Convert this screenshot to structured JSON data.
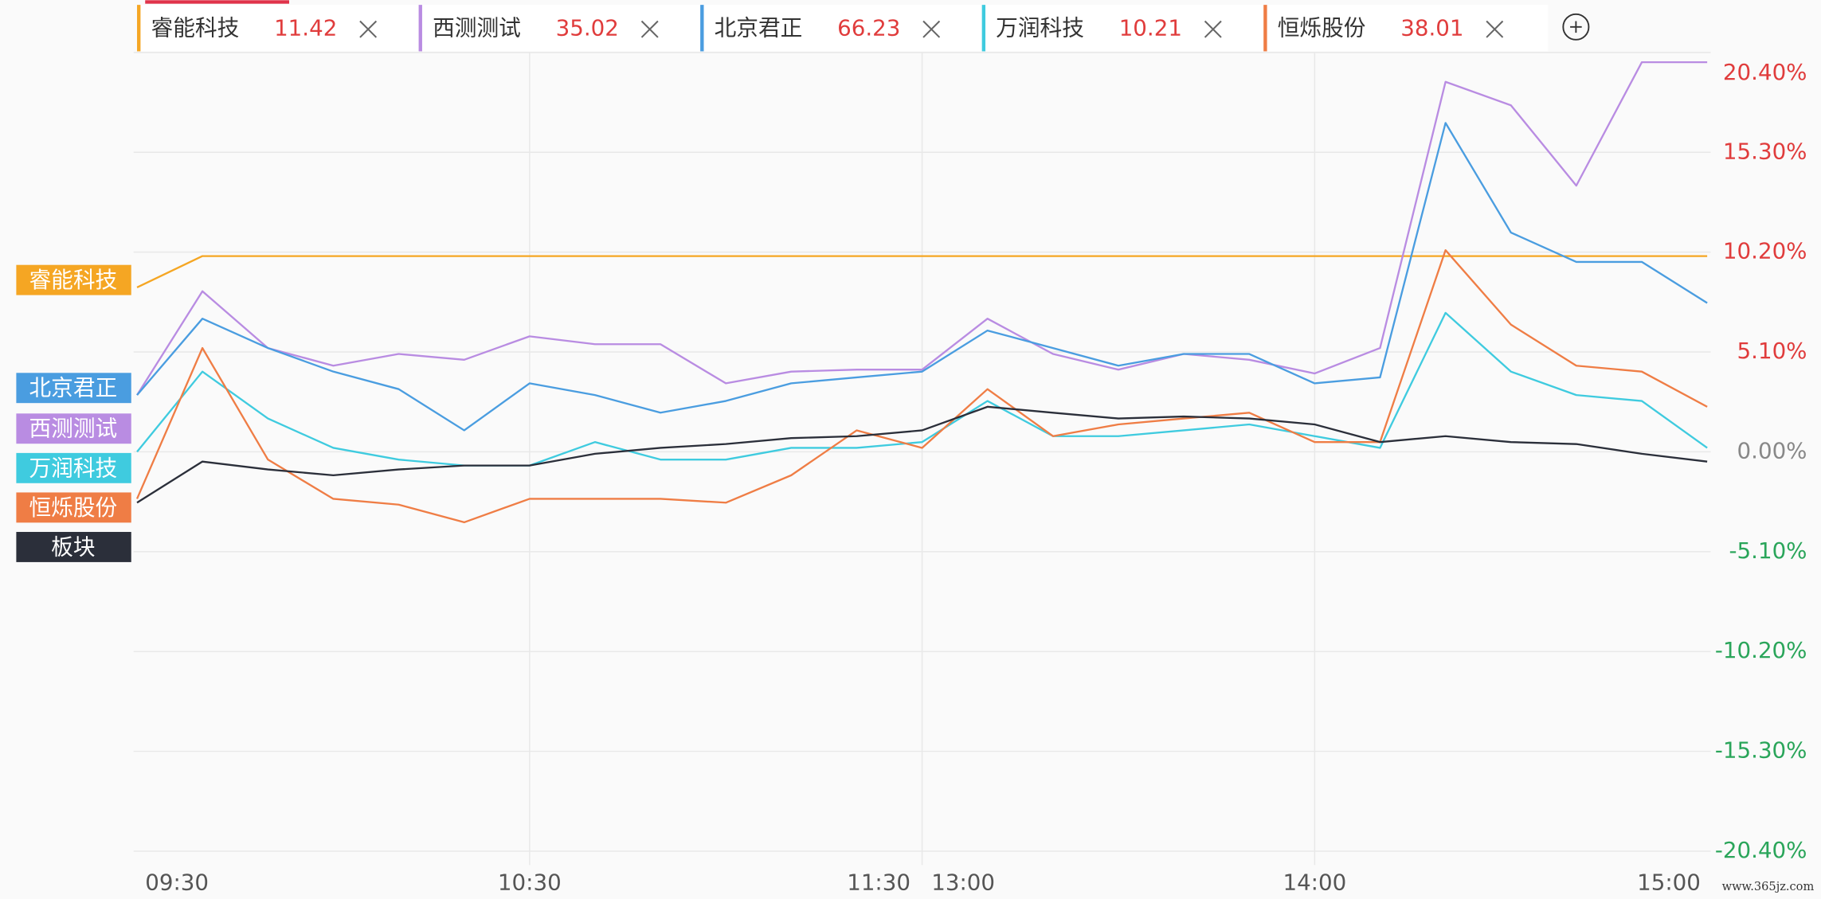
{
  "chart_data": {
    "type": "line",
    "categories": [
      "09:30",
      null,
      null,
      null,
      null,
      null,
      "10:30",
      null,
      null,
      null,
      null,
      null,
      "11:30",
      "13:00",
      null,
      null,
      null,
      null,
      null,
      "14:00",
      null,
      null,
      null,
      null,
      null,
      "15:00"
    ],
    "ylim": [
      -20.4,
      20.4
    ],
    "yticks": [
      {
        "value": 20.4,
        "label": "20.40%"
      },
      {
        "value": 15.3,
        "label": "15.30%"
      },
      {
        "value": 10.2,
        "label": "10.20%"
      },
      {
        "value": 5.1,
        "label": "5.10%"
      },
      {
        "value": 0,
        "label": "0.00%"
      },
      {
        "value": -5.1,
        "label": "-5.10%"
      },
      {
        "value": -10.2,
        "label": "-10.20%"
      },
      {
        "value": -15.3,
        "label": "-15.30%"
      },
      {
        "value": -20.4,
        "label": "-20.40%"
      }
    ],
    "grid": true,
    "series": [
      {
        "name": "睿能科技",
        "price": 11.42,
        "color": "#f5a623",
        "values": [
          8.4,
          10.0,
          10.0,
          10.0,
          10.0,
          10.0,
          10.0,
          10.0,
          10.0,
          10.0,
          10.0,
          10.0,
          10.0,
          10.0,
          10.0,
          10.0,
          10.0,
          10.0,
          10.0,
          10.0,
          10.0,
          10.0,
          10.0,
          10.0,
          10.0,
          10.0
        ]
      },
      {
        "name": "西测测试",
        "price": 35.02,
        "color": "#b98ce2",
        "values": [
          2.9,
          8.2,
          5.3,
          4.4,
          5.0,
          4.7,
          5.9,
          5.5,
          5.5,
          3.5,
          4.1,
          4.2,
          4.2,
          4.2,
          6.8,
          5.0,
          4.2,
          5.0,
          4.7,
          4.0,
          5.3,
          18.9,
          17.7,
          13.6,
          19.9,
          19.9
        ]
      },
      {
        "name": "北京君正",
        "price": 66.23,
        "color": "#4a9de0",
        "values": [
          2.9,
          6.8,
          5.3,
          4.1,
          3.2,
          1.1,
          3.5,
          2.9,
          2.0,
          2.6,
          3.5,
          3.8,
          4.1,
          4.1,
          6.2,
          5.3,
          4.4,
          5.0,
          5.0,
          3.5,
          3.8,
          16.8,
          11.2,
          9.7,
          9.7,
          7.6
        ]
      },
      {
        "name": "万润科技",
        "price": 10.21,
        "color": "#3fcbdf",
        "values": [
          0,
          4.1,
          1.7,
          0.2,
          -0.4,
          -0.7,
          -0.7,
          0.5,
          -0.4,
          -0.4,
          0.2,
          0.2,
          0.5,
          0.5,
          2.6,
          0.8,
          0.8,
          1.1,
          1.4,
          0.8,
          0.2,
          7.1,
          4.1,
          2.9,
          2.6,
          0.2
        ]
      },
      {
        "name": "恒烁股份",
        "price": 38.01,
        "color": "#ef7d45",
        "values": [
          -2.4,
          5.3,
          -0.4,
          -2.4,
          -2.7,
          -3.6,
          -2.4,
          -2.4,
          -2.4,
          -2.6,
          -1.2,
          1.1,
          0.2,
          0.2,
          3.2,
          0.8,
          1.4,
          1.7,
          2.0,
          0.5,
          0.5,
          10.3,
          6.5,
          4.4,
          4.1,
          2.3
        ]
      },
      {
        "name": "板块",
        "color": "#2b2f3a",
        "values": [
          -2.6,
          -0.5,
          -0.9,
          -1.2,
          -0.9,
          -0.7,
          -0.7,
          -0.1,
          0.2,
          0.4,
          0.7,
          0.8,
          1.1,
          1.1,
          2.3,
          2.0,
          1.7,
          1.8,
          1.7,
          1.4,
          0.5,
          0.8,
          0.5,
          0.4,
          -0.1,
          -0.5
        ]
      }
    ],
    "watermark": "www.365jz.com"
  }
}
